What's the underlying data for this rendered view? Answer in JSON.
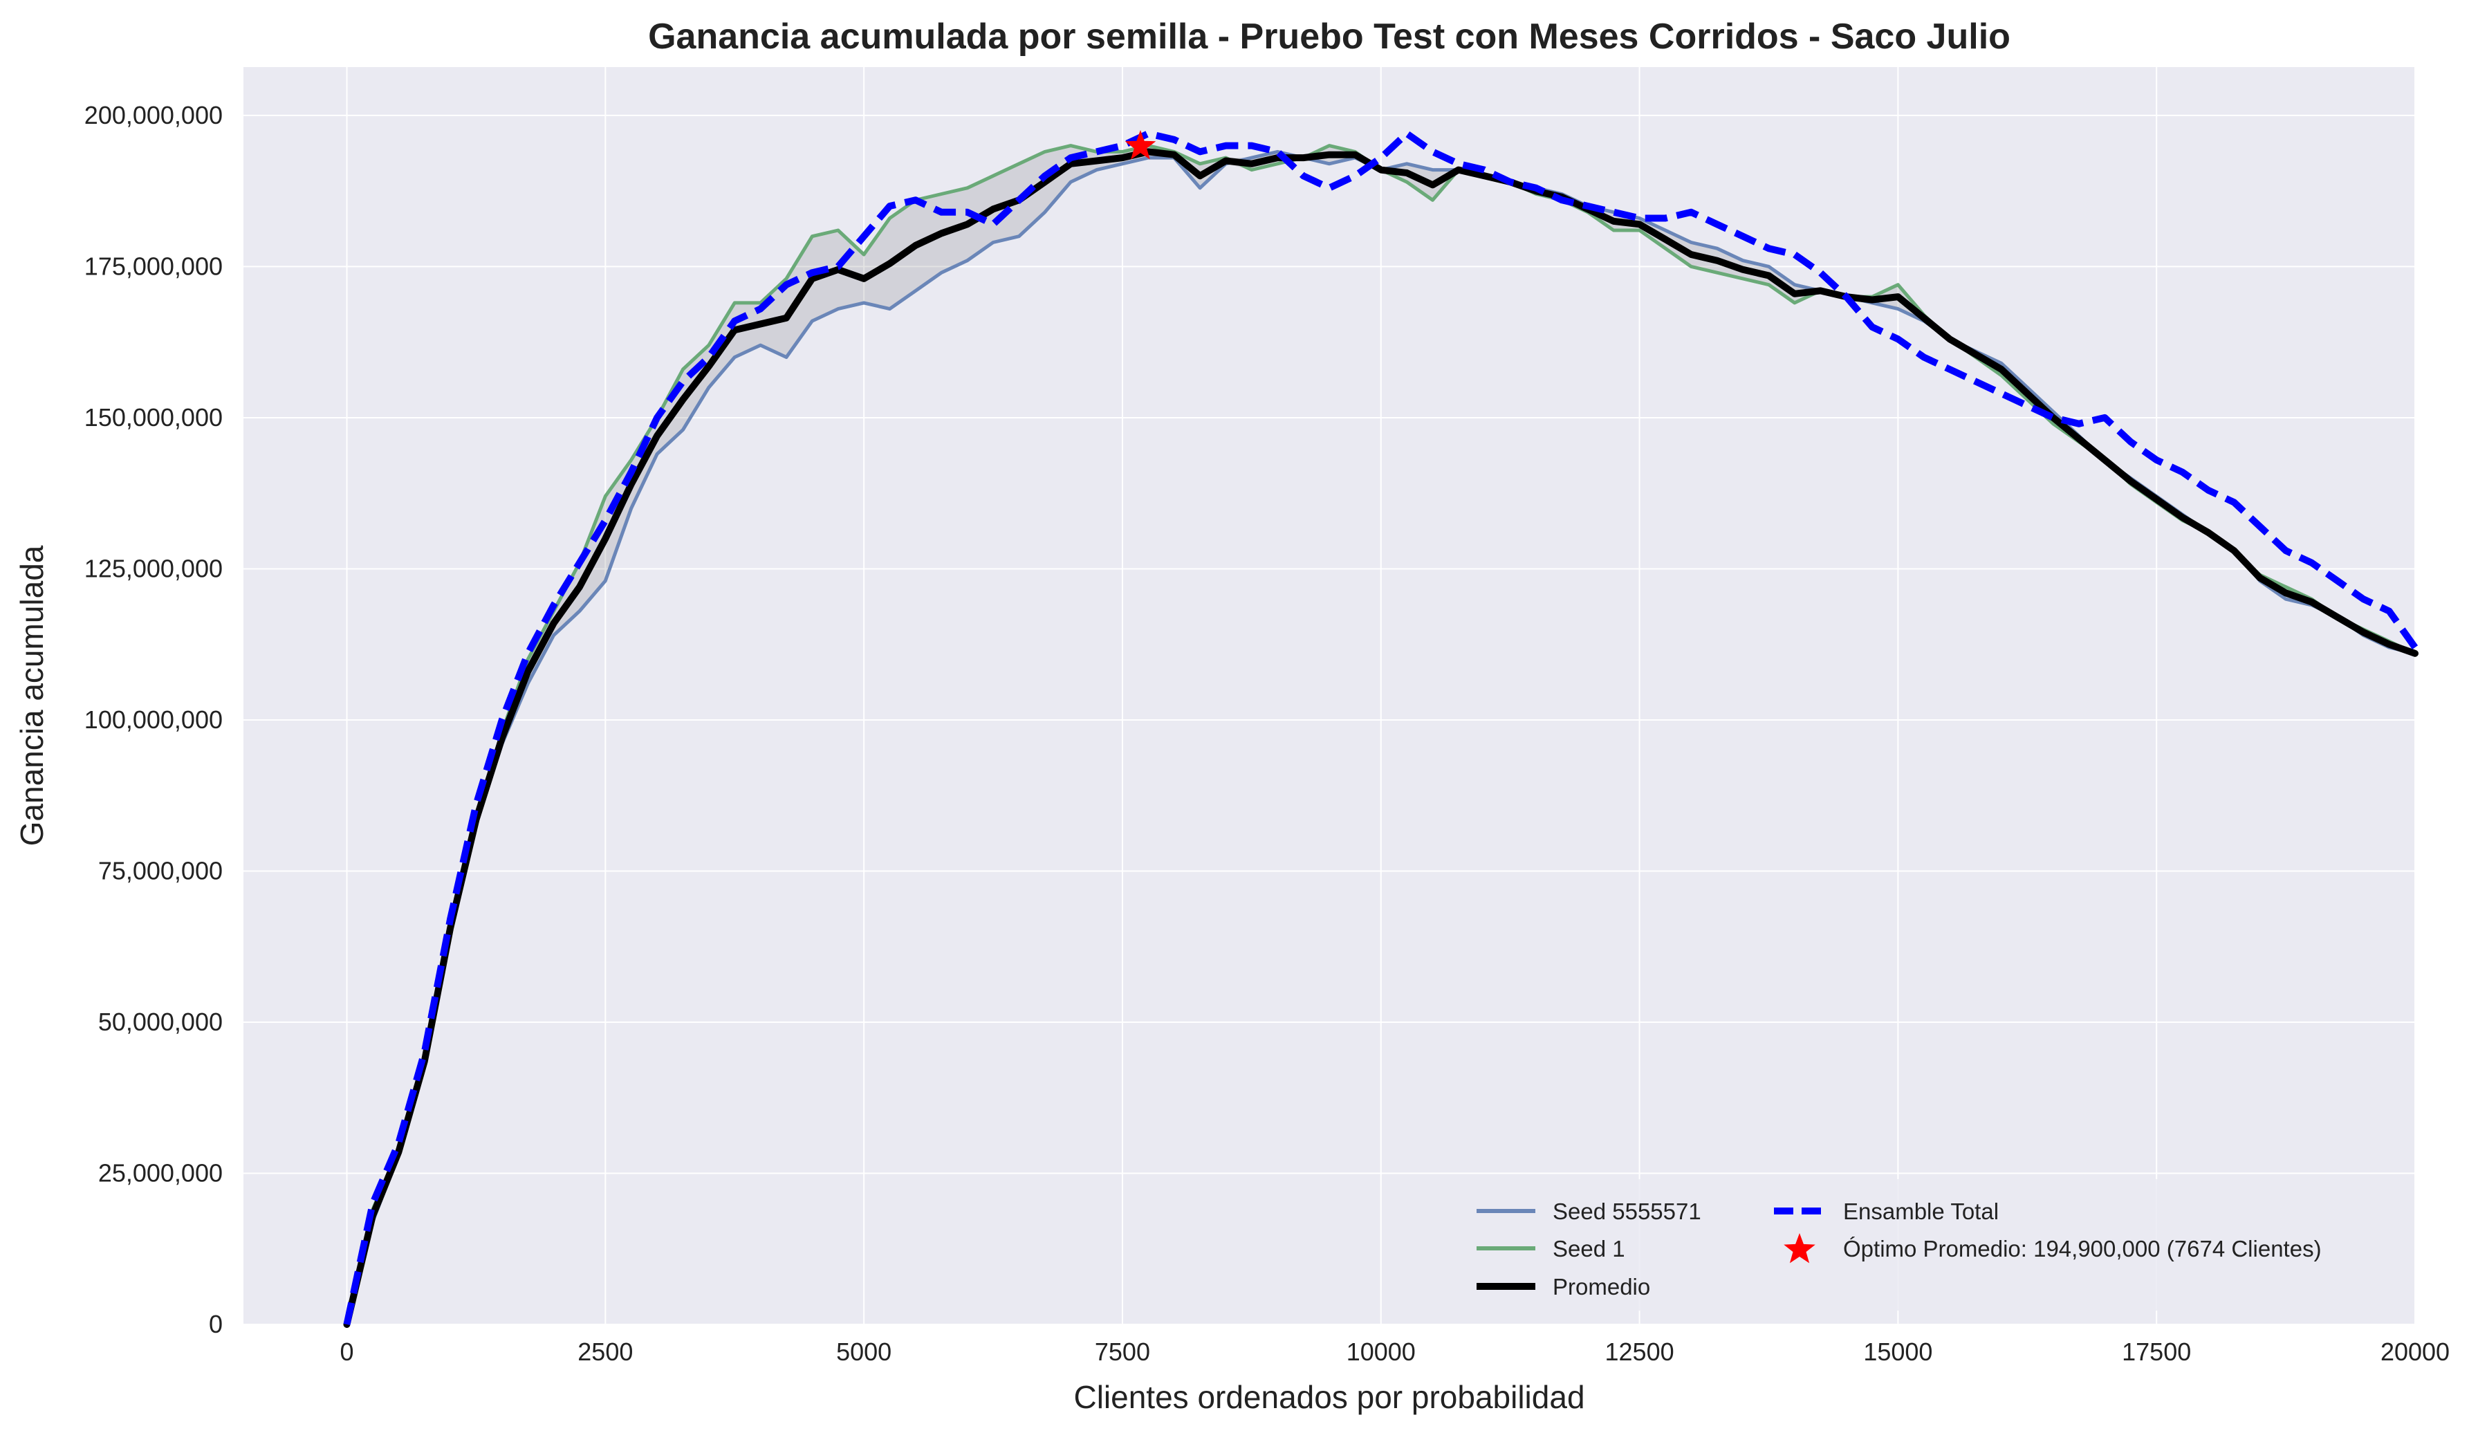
{
  "chart_data": {
    "type": "line",
    "title": "Ganancia acumulada por semilla - Pruebo Test con Meses Corridos - Saco Julio",
    "xlabel": "Clientes ordenados por probabilidad",
    "ylabel": "Ganancia acumulada",
    "xlim": [
      -1000,
      20000
    ],
    "ylim": [
      0,
      208000000
    ],
    "x_ticks": [
      "0",
      "2500",
      "5000",
      "7500",
      "10000",
      "12500",
      "15000",
      "17500",
      "20000"
    ],
    "y_ticks": [
      "0",
      "25,000,000",
      "50,000,000",
      "75,000,000",
      "100,000,000",
      "125,000,000",
      "150,000,000",
      "175,000,000",
      "200,000,000"
    ],
    "grid": true,
    "legend_placement": "lower-right",
    "series": [
      {
        "name": "Seed 5555571",
        "color": "#6a86b8",
        "style": "solid",
        "x": [
          0,
          250,
          500,
          750,
          1000,
          1250,
          1500,
          1750,
          2000,
          2250,
          2500,
          2750,
          3000,
          3250,
          3500,
          3750,
          4000,
          4250,
          4500,
          4750,
          5000,
          5250,
          5500,
          5750,
          6000,
          6250,
          6500,
          6750,
          7000,
          7250,
          7500,
          7750,
          8000,
          8250,
          8500,
          8750,
          9000,
          9250,
          9500,
          9750,
          10000,
          10250,
          10500,
          10750,
          11000,
          11250,
          11500,
          11750,
          12000,
          12250,
          12500,
          12750,
          13000,
          13250,
          13500,
          13750,
          14000,
          14250,
          14500,
          14750,
          15000,
          15250,
          15500,
          15750,
          16000,
          16250,
          16500,
          16750,
          17000,
          17250,
          17500,
          17750,
          18000,
          18250,
          18500,
          18750,
          19000,
          19250,
          19500,
          19750,
          20000
        ],
        "values": [
          0,
          17000000,
          28000000,
          43000000,
          65000000,
          83000000,
          96000000,
          106000000,
          114000000,
          118000000,
          123000000,
          135000000,
          144000000,
          148000000,
          155000000,
          160000000,
          162000000,
          160000000,
          166000000,
          168000000,
          169000000,
          168000000,
          171000000,
          174000000,
          176000000,
          179000000,
          180000000,
          184000000,
          189000000,
          191000000,
          192000000,
          193000000,
          193000000,
          188000000,
          192000000,
          193000000,
          194000000,
          193000000,
          192000000,
          193000000,
          191000000,
          192000000,
          191000000,
          191000000,
          190000000,
          189000000,
          188000000,
          187000000,
          185000000,
          184000000,
          183000000,
          181000000,
          179000000,
          178000000,
          176000000,
          175000000,
          172000000,
          171000000,
          170000000,
          169000000,
          168000000,
          166000000,
          163000000,
          161000000,
          159000000,
          155000000,
          151000000,
          147000000,
          143000000,
          140000000,
          137000000,
          134000000,
          131000000,
          128000000,
          123000000,
          120000000,
          119000000,
          117000000,
          114000000,
          112000000,
          111000000
        ]
      },
      {
        "name": "Seed 1",
        "color": "#6aaa78",
        "style": "solid",
        "x": [
          0,
          250,
          500,
          750,
          1000,
          1250,
          1500,
          1750,
          2000,
          2250,
          2500,
          2750,
          3000,
          3250,
          3500,
          3750,
          4000,
          4250,
          4500,
          4750,
          5000,
          5250,
          5500,
          5750,
          6000,
          6250,
          6500,
          6750,
          7000,
          7250,
          7500,
          7750,
          8000,
          8250,
          8500,
          8750,
          9000,
          9250,
          9500,
          9750,
          10000,
          10250,
          10500,
          10750,
          11000,
          11250,
          11500,
          11750,
          12000,
          12250,
          12500,
          12750,
          13000,
          13250,
          13500,
          13750,
          14000,
          14250,
          14500,
          14750,
          15000,
          15250,
          15500,
          15750,
          16000,
          16250,
          16500,
          16750,
          17000,
          17250,
          17500,
          17750,
          18000,
          18250,
          18500,
          18750,
          19000,
          19250,
          19500,
          19750,
          20000
        ],
        "values": [
          0,
          19000000,
          29000000,
          44000000,
          66000000,
          84000000,
          98000000,
          110000000,
          118000000,
          126000000,
          137000000,
          143000000,
          150000000,
          158000000,
          162000000,
          169000000,
          169000000,
          173000000,
          180000000,
          181000000,
          177000000,
          183000000,
          186000000,
          187000000,
          188000000,
          190000000,
          192000000,
          194000000,
          195000000,
          194000000,
          194000000,
          195000000,
          194000000,
          192000000,
          193000000,
          191000000,
          192000000,
          193000000,
          195000000,
          194000000,
          191000000,
          189000000,
          186000000,
          191000000,
          190000000,
          189000000,
          187000000,
          186000000,
          184000000,
          181000000,
          181000000,
          178000000,
          175000000,
          174000000,
          173000000,
          172000000,
          169000000,
          171000000,
          170000000,
          170000000,
          172000000,
          167000000,
          163000000,
          160000000,
          157000000,
          153000000,
          149000000,
          146000000,
          143000000,
          139000000,
          136000000,
          133000000,
          131000000,
          128000000,
          124000000,
          122000000,
          120000000,
          117000000,
          115000000,
          113000000,
          111000000
        ]
      },
      {
        "name": "Promedio",
        "color": "#000000",
        "style": "solid-thick",
        "x": [
          0,
          250,
          500,
          750,
          1000,
          1250,
          1500,
          1750,
          2000,
          2250,
          2500,
          2750,
          3000,
          3250,
          3500,
          3750,
          4000,
          4250,
          4500,
          4750,
          5000,
          5250,
          5500,
          5750,
          6000,
          6250,
          6500,
          6750,
          7000,
          7250,
          7500,
          7750,
          8000,
          8250,
          8500,
          8750,
          9000,
          9250,
          9500,
          9750,
          10000,
          10250,
          10500,
          10750,
          11000,
          11250,
          11500,
          11750,
          12000,
          12250,
          12500,
          12750,
          13000,
          13250,
          13500,
          13750,
          14000,
          14250,
          14500,
          14750,
          15000,
          15250,
          15500,
          15750,
          16000,
          16250,
          16500,
          16750,
          17000,
          17250,
          17500,
          17750,
          18000,
          18250,
          18500,
          18750,
          19000,
          19250,
          19500,
          19750,
          20000
        ],
        "values": [
          0,
          18000000,
          28500000,
          43500000,
          65500000,
          83500000,
          97000000,
          108000000,
          116000000,
          122000000,
          130000000,
          139000000,
          147000000,
          153000000,
          158500000,
          164500000,
          165500000,
          166500000,
          173000000,
          174500000,
          173000000,
          175500000,
          178500000,
          180500000,
          182000000,
          184500000,
          186000000,
          189000000,
          192000000,
          192500000,
          193000000,
          194000000,
          193500000,
          190000000,
          192500000,
          192000000,
          193000000,
          193000000,
          193500000,
          193500000,
          191000000,
          190500000,
          188500000,
          191000000,
          190000000,
          189000000,
          187500000,
          186500000,
          184500000,
          182500000,
          182000000,
          179500000,
          177000000,
          176000000,
          174500000,
          173500000,
          170500000,
          171000000,
          170000000,
          169500000,
          170000000,
          166500000,
          163000000,
          160500000,
          158000000,
          154000000,
          150000000,
          146500000,
          143000000,
          139500000,
          136500000,
          133500000,
          131000000,
          128000000,
          123500000,
          121000000,
          119500000,
          117000000,
          114500000,
          112500000,
          111000000
        ]
      },
      {
        "name": "Ensamble Total",
        "color": "#0000ff",
        "style": "dashed",
        "x": [
          0,
          250,
          500,
          750,
          1000,
          1250,
          1500,
          1750,
          2000,
          2250,
          2500,
          2750,
          3000,
          3250,
          3500,
          3750,
          4000,
          4250,
          4500,
          4750,
          5000,
          5250,
          5500,
          5750,
          6000,
          6250,
          6500,
          6750,
          7000,
          7250,
          7500,
          7750,
          8000,
          8250,
          8500,
          8750,
          9000,
          9250,
          9500,
          9750,
          10000,
          10250,
          10500,
          10750,
          11000,
          11250,
          11500,
          11750,
          12000,
          12250,
          12500,
          12750,
          13000,
          13250,
          13500,
          13750,
          14000,
          14250,
          14500,
          14750,
          15000,
          15250,
          15500,
          15750,
          16000,
          16250,
          16500,
          16750,
          17000,
          17250,
          17500,
          17750,
          18000,
          18250,
          18500,
          18750,
          19000,
          19250,
          19500,
          19750,
          20000
        ],
        "values": [
          0,
          20000000,
          30000000,
          45000000,
          67000000,
          86000000,
          100000000,
          111000000,
          119000000,
          126000000,
          133000000,
          141000000,
          150000000,
          156000000,
          160000000,
          166000000,
          168000000,
          172000000,
          174000000,
          175000000,
          180000000,
          185000000,
          186000000,
          184000000,
          184000000,
          182000000,
          186000000,
          190000000,
          193000000,
          194000000,
          195000000,
          197000000,
          196000000,
          194000000,
          195000000,
          195000000,
          194000000,
          190000000,
          188000000,
          190000000,
          193000000,
          197000000,
          194000000,
          192000000,
          191000000,
          189000000,
          188000000,
          186000000,
          185000000,
          184000000,
          183000000,
          183000000,
          184000000,
          182000000,
          180000000,
          178000000,
          177000000,
          174000000,
          170000000,
          165000000,
          163000000,
          160000000,
          158000000,
          156000000,
          154000000,
          152000000,
          150000000,
          149000000,
          150000000,
          146000000,
          143000000,
          141000000,
          138000000,
          136000000,
          132000000,
          128000000,
          126000000,
          123000000,
          120000000,
          118000000,
          112000000
        ]
      }
    ],
    "annotation": {
      "name": "Óptimo Promedio: 194,900,000 (7674 Clientes)",
      "x": 7674,
      "y": 194900000,
      "color": "#ff0000",
      "marker": "star"
    }
  }
}
